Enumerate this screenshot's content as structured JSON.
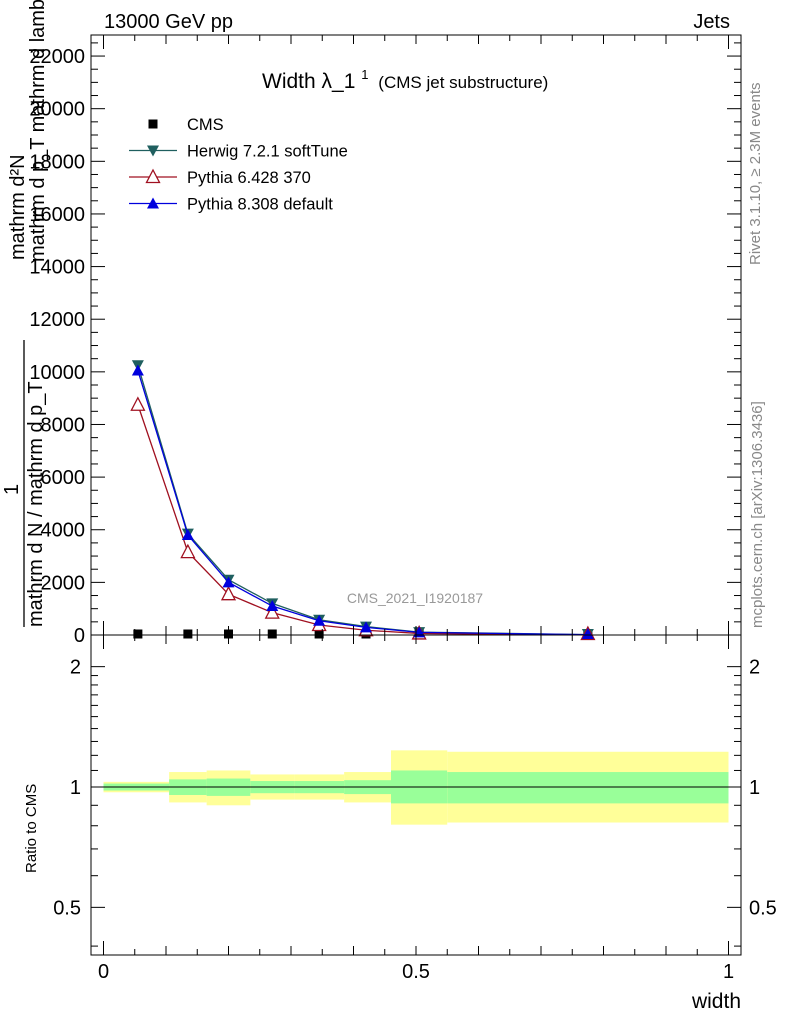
{
  "header": {
    "left_text": "13000 GeV pp",
    "right_text": "Jets"
  },
  "side_labels": {
    "rivet": "Rivet 3.1.10, ≥ 2.3M events",
    "mcplots": "mcplots.cern.ch [arXiv:1306.3436]"
  },
  "watermark": "CMS_2021_I1920187",
  "chart_data": {
    "type": "line",
    "title_main": "Width λ_1",
    "title_sup": "1",
    "title_sub": "(CMS jet substructure)",
    "ylabel_top": "mathrm d²N",
    "ylabel_bottom": "mathrm d p_T mathrm d lambda",
    "ylabel_one": "1",
    "ylabel_inner_top": "mathrm d N / mathrm d p_T",
    "xlabel": "width",
    "xlim": [
      -0.02,
      1.02
    ],
    "ylim": [
      0,
      22800
    ],
    "yticks": [
      {
        "value": 0,
        "label": "0"
      },
      {
        "value": 2000,
        "label": "2000"
      },
      {
        "value": 4000,
        "label": "4000"
      },
      {
        "value": 6000,
        "label": "6000"
      },
      {
        "value": 8000,
        "label": "8000"
      },
      {
        "value": 10000,
        "label": "10000"
      },
      {
        "value": 12000,
        "label": "12000"
      },
      {
        "value": 14000,
        "label": "14000"
      },
      {
        "value": 16000,
        "label": "16000"
      },
      {
        "value": 18000,
        "label": "18000"
      },
      {
        "value": 20000,
        "label": "20000"
      },
      {
        "value": 22000,
        "label": "22000"
      }
    ],
    "xticks": [
      {
        "value": 0,
        "label": "0"
      },
      {
        "value": 0.5,
        "label": "0.5"
      },
      {
        "value": 1,
        "label": "1"
      }
    ],
    "series": [
      {
        "name": "CMS",
        "marker": "square",
        "color": "#000000",
        "x": [
          0.055,
          0.135,
          0.2,
          0.27,
          0.345,
          0.42,
          0.505,
          0.775
        ],
        "y": [
          0,
          0,
          0,
          0,
          0,
          0,
          0,
          0
        ]
      },
      {
        "name": "Herwig 7.2.1 softTune",
        "marker": "triangle-down",
        "color": "#1f5f5f",
        "x": [
          0.055,
          0.135,
          0.2,
          0.27,
          0.345,
          0.42,
          0.505,
          0.775
        ],
        "y": [
          10250,
          3850,
          2100,
          1200,
          580,
          320,
          110,
          15
        ]
      },
      {
        "name": "Pythia 6.428 370",
        "marker": "triangle-up-open",
        "color": "#a01020",
        "x": [
          0.055,
          0.135,
          0.2,
          0.27,
          0.345,
          0.42,
          0.505,
          0.775
        ],
        "y": [
          8750,
          3150,
          1550,
          850,
          380,
          180,
          60,
          5
        ]
      },
      {
        "name": "Pythia 8.308 default",
        "marker": "triangle-up",
        "color": "#0000dd",
        "x": [
          0.055,
          0.135,
          0.2,
          0.27,
          0.345,
          0.42,
          0.505,
          0.775
        ],
        "y": [
          10050,
          3800,
          2000,
          1100,
          540,
          290,
          100,
          12
        ]
      }
    ],
    "ratio": {
      "ylabel": "Ratio to CMS",
      "ylim": [
        0.38,
        2.4
      ],
      "log": true,
      "yticks": [
        {
          "value": 0.5,
          "label": "0.5"
        },
        {
          "value": 1,
          "label": "1"
        },
        {
          "value": 2,
          "label": "2"
        }
      ],
      "bands": [
        {
          "x0": 0.0,
          "x1": 0.105,
          "inner": [
            0.98,
            1.02
          ],
          "outer": [
            0.97,
            1.03
          ]
        },
        {
          "x0": 0.105,
          "x1": 0.165,
          "inner": [
            0.955,
            1.045
          ],
          "outer": [
            0.915,
            1.09
          ]
        },
        {
          "x0": 0.165,
          "x1": 0.235,
          "inner": [
            0.95,
            1.05
          ],
          "outer": [
            0.9,
            1.1
          ]
        },
        {
          "x0": 0.235,
          "x1": 0.305,
          "inner": [
            0.965,
            1.035
          ],
          "outer": [
            0.93,
            1.075
          ]
        },
        {
          "x0": 0.305,
          "x1": 0.385,
          "inner": [
            0.965,
            1.035
          ],
          "outer": [
            0.93,
            1.075
          ]
        },
        {
          "x0": 0.385,
          "x1": 0.46,
          "inner": [
            0.96,
            1.04
          ],
          "outer": [
            0.915,
            1.09
          ]
        },
        {
          "x0": 0.46,
          "x1": 0.55,
          "inner": [
            0.91,
            1.1
          ],
          "outer": [
            0.805,
            1.235
          ]
        },
        {
          "x0": 0.55,
          "x1": 1.0,
          "inner": [
            0.91,
            1.09
          ],
          "outer": [
            0.815,
            1.225
          ]
        }
      ]
    }
  }
}
